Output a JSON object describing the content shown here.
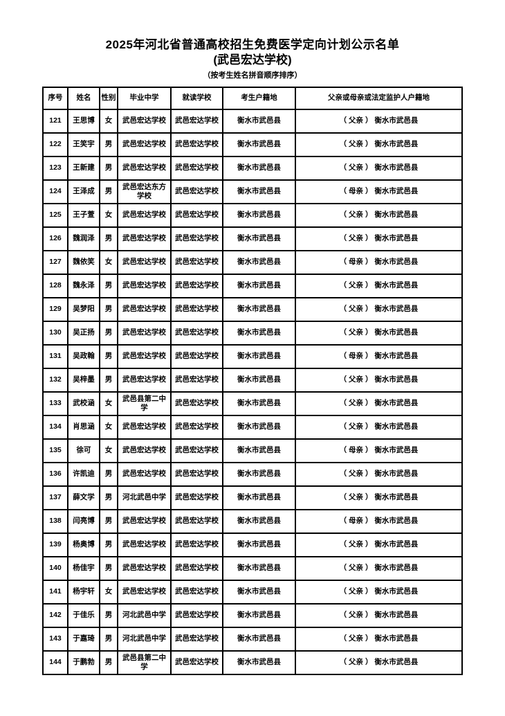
{
  "header": {
    "title": "2025年河北省普通高校招生免费医学定向计划公示名单",
    "subtitle": "(武邑宏达学校)",
    "sort_note": "（按考生姓名拼音顺序排序）"
  },
  "table": {
    "headers": [
      "序号",
      "姓名",
      "性别",
      "毕业中学",
      "就读学校",
      "考生户籍地",
      "父亲或母亲或法定监护人户籍地"
    ],
    "column_keys": [
      "no",
      "name",
      "gender",
      "grad-school",
      "school",
      "registration",
      "guardian-registration"
    ],
    "rows": [
      [
        "121",
        "王思博",
        "女",
        "武邑宏达学校",
        "武邑宏达学校",
        "衡水市武邑县",
        "（ 父亲 ） 衡水市武邑县"
      ],
      [
        "122",
        "王笑宇",
        "男",
        "武邑宏达学校",
        "武邑宏达学校",
        "衡水市武邑县",
        "（ 父亲 ） 衡水市武邑县"
      ],
      [
        "123",
        "王新建",
        "男",
        "武邑宏达学校",
        "武邑宏达学校",
        "衡水市武邑县",
        "（ 父亲 ） 衡水市武邑县"
      ],
      [
        "124",
        "王泽成",
        "男",
        "武邑宏达东方学校",
        "武邑宏达学校",
        "衡水市武邑县",
        "（ 母亲 ） 衡水市武邑县"
      ],
      [
        "125",
        "王子萱",
        "女",
        "武邑宏达学校",
        "武邑宏达学校",
        "衡水市武邑县",
        "（ 父亲 ） 衡水市武邑县"
      ],
      [
        "126",
        "魏润泽",
        "男",
        "武邑宏达学校",
        "武邑宏达学校",
        "衡水市武邑县",
        "（ 父亲 ） 衡水市武邑县"
      ],
      [
        "127",
        "魏依笑",
        "女",
        "武邑宏达学校",
        "武邑宏达学校",
        "衡水市武邑县",
        "（ 母亲 ） 衡水市武邑县"
      ],
      [
        "128",
        "魏永泽",
        "男",
        "武邑宏达学校",
        "武邑宏达学校",
        "衡水市武邑县",
        "（ 父亲 ） 衡水市武邑县"
      ],
      [
        "129",
        "吴梦阳",
        "男",
        "武邑宏达学校",
        "武邑宏达学校",
        "衡水市武邑县",
        "（ 父亲 ） 衡水市武邑县"
      ],
      [
        "130",
        "吴正扬",
        "男",
        "武邑宏达学校",
        "武邑宏达学校",
        "衡水市武邑县",
        "（ 父亲 ） 衡水市武邑县"
      ],
      [
        "131",
        "吴政翰",
        "男",
        "武邑宏达学校",
        "武邑宏达学校",
        "衡水市武邑县",
        "（ 母亲 ） 衡水市武邑县"
      ],
      [
        "132",
        "吴梓墨",
        "男",
        "武邑宏达学校",
        "武邑宏达学校",
        "衡水市武邑县",
        "（ 父亲 ） 衡水市武邑县"
      ],
      [
        "133",
        "武校涵",
        "女",
        "武邑县第二中学",
        "武邑宏达学校",
        "衡水市武邑县",
        "（ 父亲 ） 衡水市武邑县"
      ],
      [
        "134",
        "肖思涵",
        "女",
        "武邑宏达学校",
        "武邑宏达学校",
        "衡水市武邑县",
        "（ 父亲 ） 衡水市武邑县"
      ],
      [
        "135",
        "徐可",
        "女",
        "武邑宏达学校",
        "武邑宏达学校",
        "衡水市武邑县",
        "（ 母亲 ） 衡水市武邑县"
      ],
      [
        "136",
        "许凯迪",
        "男",
        "武邑宏达学校",
        "武邑宏达学校",
        "衡水市武邑县",
        "（ 父亲 ） 衡水市武邑县"
      ],
      [
        "137",
        "薛文学",
        "男",
        "河北武邑中学",
        "武邑宏达学校",
        "衡水市武邑县",
        "（ 父亲 ） 衡水市武邑县"
      ],
      [
        "138",
        "闫亮博",
        "男",
        "武邑宏达学校",
        "武邑宏达学校",
        "衡水市武邑县",
        "（ 母亲 ） 衡水市武邑县"
      ],
      [
        "139",
        "杨奥博",
        "男",
        "武邑宏达学校",
        "武邑宏达学校",
        "衡水市武邑县",
        "（ 父亲 ） 衡水市武邑县"
      ],
      [
        "140",
        "杨佳宇",
        "男",
        "武邑宏达学校",
        "武邑宏达学校",
        "衡水市武邑县",
        "（ 父亲 ） 衡水市武邑县"
      ],
      [
        "141",
        "杨宇轩",
        "女",
        "武邑宏达学校",
        "武邑宏达学校",
        "衡水市武邑县",
        "（ 父亲 ） 衡水市武邑县"
      ],
      [
        "142",
        "于佳乐",
        "男",
        "河北武邑中学",
        "武邑宏达学校",
        "衡水市武邑县",
        "（ 父亲 ） 衡水市武邑县"
      ],
      [
        "143",
        "于嘉琦",
        "男",
        "河北武邑中学",
        "武邑宏达学校",
        "衡水市武邑县",
        "（ 父亲 ） 衡水市武邑县"
      ],
      [
        "144",
        "于鹏勃",
        "男",
        "武邑县第二中学",
        "武邑宏达学校",
        "衡水市武邑县",
        "（ 父亲 ） 衡水市武邑县"
      ]
    ]
  }
}
